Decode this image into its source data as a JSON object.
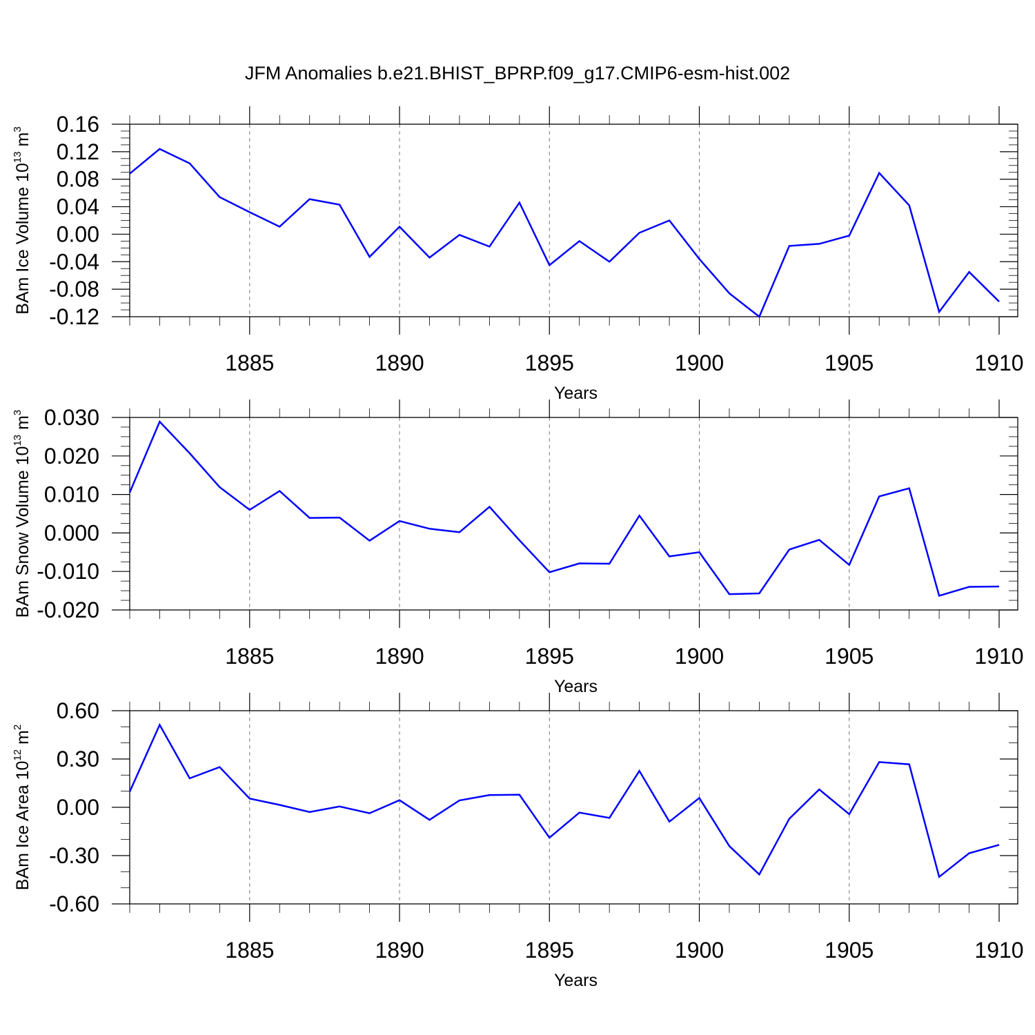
{
  "title": "JFM Anomalies b.e21.BHIST_BPRP.f09_g17.CMIP6-esm-hist.002",
  "chart_data": [
    {
      "type": "line",
      "name": "ice-volume",
      "ylabel": {
        "text": "BAm Ice Volume 10",
        "exp": "13",
        "unit": " m",
        "unit_exp": "3"
      },
      "xlabel": "Years",
      "xlim": [
        1881,
        1910
      ],
      "ylim": [
        -0.12,
        0.16
      ],
      "ymajor": 0.04,
      "yminor": 0.01,
      "xticks": [
        1885,
        1890,
        1895,
        1900,
        1905,
        1910
      ],
      "yticks": [
        0.16,
        0.12,
        0.08,
        0.04,
        0.0,
        -0.04,
        -0.08,
        -0.12
      ],
      "ytick_labels": [
        "0.16",
        "0.12",
        "0.08",
        "0.04",
        "0.00",
        "-0.04",
        "-0.08",
        "-0.12"
      ],
      "grid": "vertical dashed",
      "color": "#0000ff",
      "x": [
        1881,
        1882,
        1883,
        1884,
        1885,
        1886,
        1887,
        1888,
        1889,
        1890,
        1891,
        1892,
        1893,
        1894,
        1895,
        1896,
        1897,
        1898,
        1899,
        1900,
        1901,
        1902,
        1903,
        1904,
        1905,
        1906,
        1907,
        1908,
        1909,
        1910
      ],
      "values": [
        0.088,
        0.124,
        0.103,
        0.054,
        0.032,
        0.011,
        0.051,
        0.043,
        -0.033,
        0.011,
        -0.034,
        -0.001,
        -0.018,
        0.046,
        -0.045,
        -0.01,
        -0.04,
        0.002,
        0.02,
        -0.036,
        -0.086,
        -0.12,
        -0.017,
        -0.014,
        -0.002,
        0.089,
        0.042,
        -0.113,
        -0.055,
        -0.098
      ]
    },
    {
      "type": "line",
      "name": "snow-volume",
      "ylabel": {
        "text": "BAm Snow Volume 10",
        "exp": "13",
        "unit": " m",
        "unit_exp": "3"
      },
      "xlabel": "Years",
      "xlim": [
        1881,
        1910
      ],
      "ylim": [
        -0.02,
        0.03
      ],
      "ymajor": 0.01,
      "yminor": 0.0025,
      "xticks": [
        1885,
        1890,
        1895,
        1900,
        1905,
        1910
      ],
      "yticks": [
        0.03,
        0.02,
        0.01,
        0.0,
        -0.01,
        -0.02
      ],
      "ytick_labels": [
        "0.030",
        "0.020",
        "0.010",
        "0.000",
        "-0.010",
        "-0.020"
      ],
      "grid": "vertical dashed",
      "color": "#0000ff",
      "x": [
        1881,
        1882,
        1883,
        1884,
        1885,
        1886,
        1887,
        1888,
        1889,
        1890,
        1891,
        1892,
        1893,
        1894,
        1895,
        1896,
        1897,
        1898,
        1899,
        1900,
        1901,
        1902,
        1903,
        1904,
        1905,
        1906,
        1907,
        1908,
        1909,
        1910
      ],
      "values": [
        0.0105,
        0.0289,
        0.0207,
        0.0119,
        0.006,
        0.0109,
        0.0039,
        0.004,
        -0.002,
        0.0031,
        0.0011,
        0.0002,
        0.0068,
        -0.0019,
        -0.0102,
        -0.0079,
        -0.008,
        0.0045,
        -0.0061,
        -0.005,
        -0.0159,
        -0.0157,
        -0.0043,
        -0.0018,
        -0.0083,
        0.0095,
        0.0116,
        -0.0163,
        -0.014,
        -0.0139
      ]
    },
    {
      "type": "line",
      "name": "ice-area",
      "ylabel": {
        "text": "BAm Ice Area 10",
        "exp": "12",
        "unit": " m",
        "unit_exp": "2"
      },
      "xlabel": "Years",
      "xlim": [
        1881,
        1910
      ],
      "ylim": [
        -0.6,
        0.6
      ],
      "ymajor": 0.3,
      "yminor": 0.1,
      "xticks": [
        1885,
        1890,
        1895,
        1900,
        1905,
        1910
      ],
      "yticks": [
        0.6,
        0.3,
        0.0,
        -0.3,
        -0.6
      ],
      "ytick_labels": [
        "0.60",
        "0.30",
        "0.00",
        "-0.30",
        "-0.60"
      ],
      "grid": "vertical dashed",
      "color": "#0000ff",
      "x": [
        1881,
        1882,
        1883,
        1884,
        1885,
        1886,
        1887,
        1888,
        1889,
        1890,
        1891,
        1892,
        1893,
        1894,
        1895,
        1896,
        1897,
        1898,
        1899,
        1900,
        1901,
        1902,
        1903,
        1904,
        1905,
        1906,
        1907,
        1908,
        1909,
        1910
      ],
      "values": [
        0.097,
        0.512,
        0.18,
        0.25,
        0.054,
        0.015,
        -0.029,
        0.005,
        -0.037,
        0.044,
        -0.078,
        0.043,
        0.076,
        0.078,
        -0.189,
        -0.033,
        -0.066,
        0.226,
        -0.089,
        0.058,
        -0.241,
        -0.417,
        -0.071,
        0.111,
        -0.043,
        0.281,
        0.267,
        -0.432,
        -0.285,
        -0.233
      ]
    }
  ]
}
